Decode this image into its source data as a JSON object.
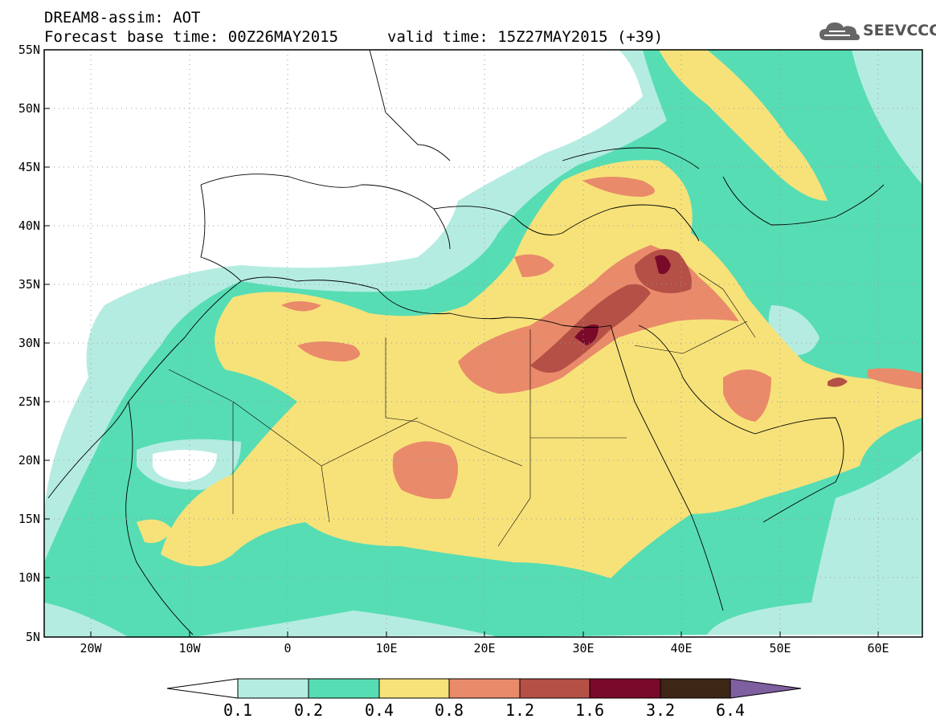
{
  "header": {
    "line1": "DREAM8-assim: AOT",
    "line2": "Forecast base time: 00Z26MAY2015",
    "valid": "valid time: 15Z27MAY2015 (+39)"
  },
  "logo": {
    "text": "SEEVCCC",
    "icon": "cloud-icon"
  },
  "map": {
    "lat_labels": [
      "55N",
      "50N",
      "45N",
      "40N",
      "35N",
      "30N",
      "25N",
      "20N",
      "15N",
      "10N",
      "5N"
    ],
    "lon_labels": [
      "20W",
      "10W",
      "0",
      "10E",
      "20E",
      "30E",
      "40E",
      "50E",
      "60E"
    ],
    "colors": {
      "c01": "#b5ece2",
      "c02": "#57ddb4",
      "c04": "#f7e27a",
      "c08": "#e98a6a",
      "c12": "#b55046",
      "c16": "#7a0a2a",
      "c32": "#3d2615",
      "c64": "#7e5fa0"
    }
  },
  "colorbar": {
    "labels": [
      "0.1",
      "0.2",
      "0.4",
      "0.8",
      "1.2",
      "1.6",
      "3.2",
      "6.4"
    ]
  }
}
